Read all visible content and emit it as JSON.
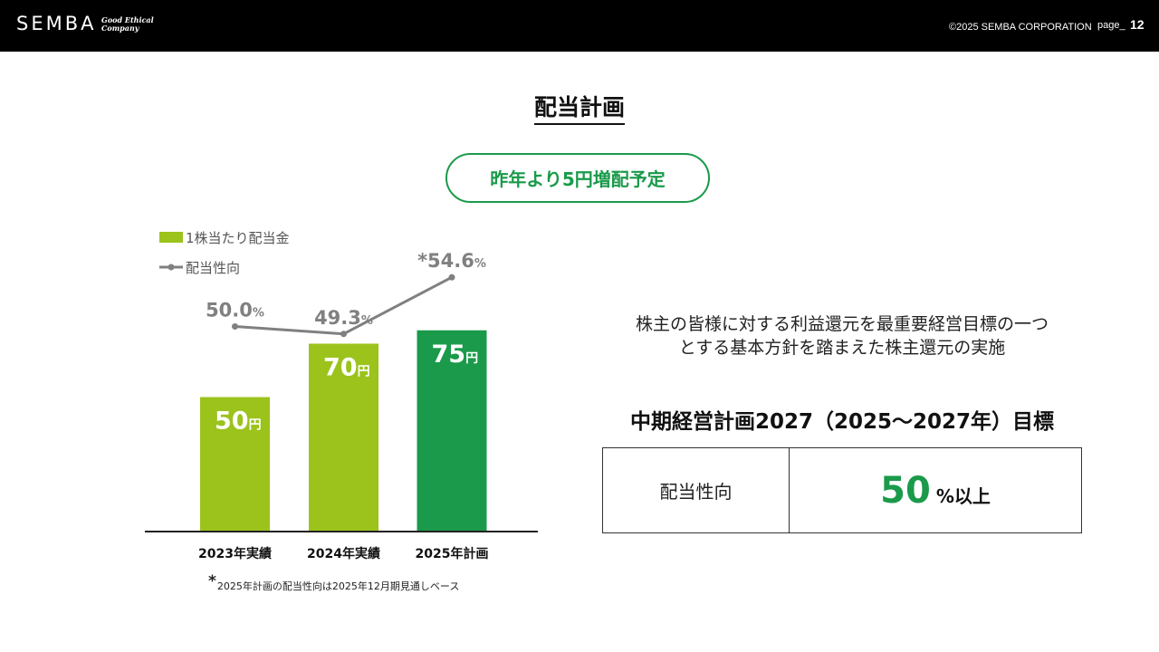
{
  "header": {
    "logo": "SEMBA",
    "tagline_1": "Good Ethical",
    "tagline_2": "Company",
    "copyright": "©2025 SEMBA CORPORATION",
    "page_label": "page_",
    "page_number": "12"
  },
  "title": "配当計画",
  "highlight": "昨年より5円増配予定",
  "chart_data": {
    "type": "bar",
    "categories": [
      "2023年実績",
      "2024年実績",
      "2025年計画"
    ],
    "series": [
      {
        "name": "1株当たり配当金",
        "values": [
          50,
          70,
          75
        ],
        "unit": "円",
        "colors": [
          "#9bc31c",
          "#9bc31c",
          "#1a9a4a"
        ]
      },
      {
        "name": "配当性向",
        "type": "line",
        "values": [
          50.0,
          49.3,
          54.6
        ],
        "unit": "%",
        "labels": [
          "50.0",
          "49.3",
          "*54.6"
        ],
        "color": "#808080"
      }
    ]
  },
  "footnote": {
    "star": "*",
    "text": "2025年計画の配当性向は2025年12月期見通しベース"
  },
  "policy": {
    "line1": "株主の皆様に対する利益還元を最重要経営目標の一つ",
    "line2": "とする基本方針を踏まえた株主還元の実施"
  },
  "mid_plan": {
    "heading": "中期経営計画2027（2025～2027年）目標",
    "label": "配当性向",
    "value": "50",
    "suffix": "%以上"
  },
  "colors": {
    "bar_light": "#9bc31c",
    "bar_dark": "#1a9a4a",
    "line": "#808080",
    "accent": "#1a9a4a"
  }
}
